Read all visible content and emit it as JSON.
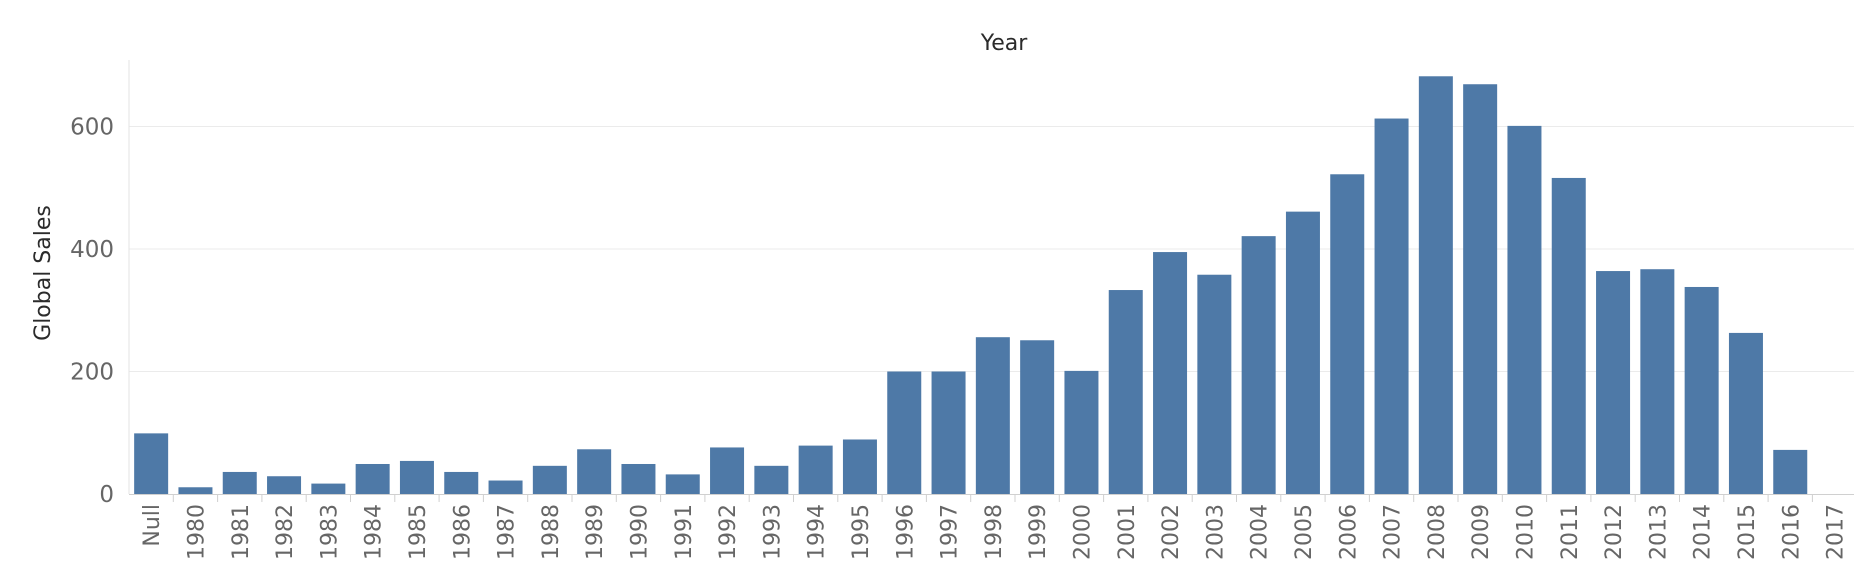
{
  "chart_data": {
    "type": "bar",
    "title": "Year",
    "xlabel": "",
    "ylabel": "Global Sales",
    "ylim": [
      0,
      720
    ],
    "yticks": [
      0,
      200,
      400,
      600
    ],
    "grid": true,
    "bar_color": "#4e79a7",
    "categories": [
      "Null",
      "1980",
      "1981",
      "1982",
      "1983",
      "1984",
      "1985",
      "1986",
      "1987",
      "1988",
      "1989",
      "1990",
      "1991",
      "1992",
      "1993",
      "1994",
      "1995",
      "1996",
      "1997",
      "1998",
      "1999",
      "2000",
      "2001",
      "2002",
      "2003",
      "2004",
      "2005",
      "2006",
      "2007",
      "2008",
      "2009",
      "2010",
      "2011",
      "2012",
      "2013",
      "2014",
      "2015",
      "2016",
      "2017"
    ],
    "values": [
      99,
      11,
      36,
      29,
      17,
      49,
      54,
      36,
      22,
      46,
      73,
      49,
      32,
      76,
      46,
      79,
      89,
      200,
      200,
      256,
      251,
      201,
      333,
      395,
      358,
      421,
      461,
      522,
      613,
      682,
      669,
      601,
      516,
      364,
      367,
      338,
      263,
      72,
      0
    ]
  }
}
